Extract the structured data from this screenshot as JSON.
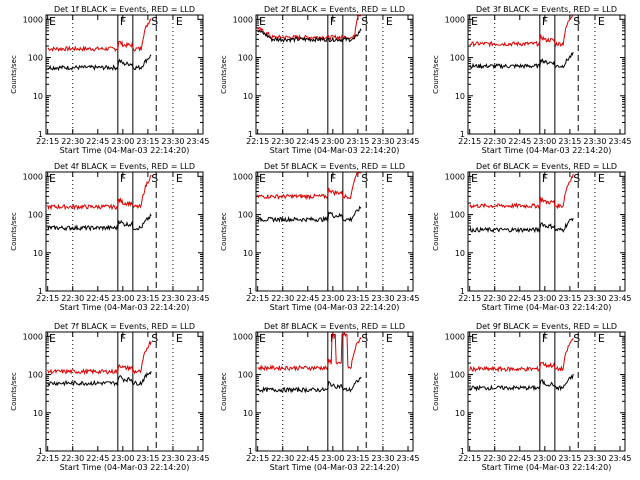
{
  "colors": {
    "events": "#000000",
    "lld": "#e00000",
    "background": "#ffffff"
  },
  "chart_data": [
    {
      "type": "line",
      "title": "Det 1f BLACK = Events, RED = LLD",
      "profile": "a",
      "events_level": 55,
      "lld_level": 170
    },
    {
      "type": "line",
      "title": "Det 2f BLACK = Events, RED = LLD",
      "profile": "flat",
      "events_level": 300,
      "lld_level": 340
    },
    {
      "type": "line",
      "title": "Det 3f BLACK = Events, RED = LLD",
      "profile": "a",
      "events_level": 60,
      "lld_level": 230
    },
    {
      "type": "line",
      "title": "Det 4f BLACK = Events, RED = LLD",
      "profile": "a",
      "events_level": 45,
      "lld_level": 160
    },
    {
      "type": "line",
      "title": "Det 5f BLACK = Events, RED = LLD",
      "profile": "a",
      "events_level": 75,
      "lld_level": 300
    },
    {
      "type": "line",
      "title": "Det 6f BLACK = Events, RED = LLD",
      "profile": "a",
      "events_level": 40,
      "lld_level": 170
    },
    {
      "type": "line",
      "title": "Det 7f BLACK = Events, RED = LLD",
      "profile": "a",
      "events_level": 60,
      "lld_level": 120
    },
    {
      "type": "line",
      "title": "Det 8f BLACK = Events, RED = LLD",
      "profile": "spike",
      "events_level": 40,
      "lld_level": 150
    },
    {
      "type": "line",
      "title": "Det 9f BLACK = Events, RED = LLD",
      "profile": "a",
      "events_level": 45,
      "lld_level": 140
    }
  ],
  "shared": {
    "xlabel": "Start Time (04-Mar-03 22:14:20)",
    "ylabel": "Counts/sec",
    "x_ticks": [
      "22:15",
      "22:30",
      "22:45",
      "23:00",
      "23:15",
      "23:30",
      "23:45"
    ],
    "y_ticks": [
      "1",
      "10",
      "100",
      "1000"
    ],
    "ylim": [
      1,
      1300
    ],
    "y_scale": "log",
    "markers": [
      {
        "label": "E",
        "minute": 0,
        "style": "dashed"
      },
      {
        "label": "F",
        "minute": 45,
        "style": "solid"
      },
      {
        "label": "S",
        "minute": 60,
        "style": "dashed"
      },
      {
        "label": "E",
        "minute": 75,
        "style": "dashed"
      }
    ],
    "event_lines": [
      {
        "minute": 42,
        "style": "solid"
      },
      {
        "minute": 51,
        "style": "solid"
      },
      {
        "minute": 65,
        "style": "dashed"
      },
      {
        "minute": 15,
        "style": "dotted"
      },
      {
        "minute": 75,
        "style": "dotted"
      }
    ]
  }
}
